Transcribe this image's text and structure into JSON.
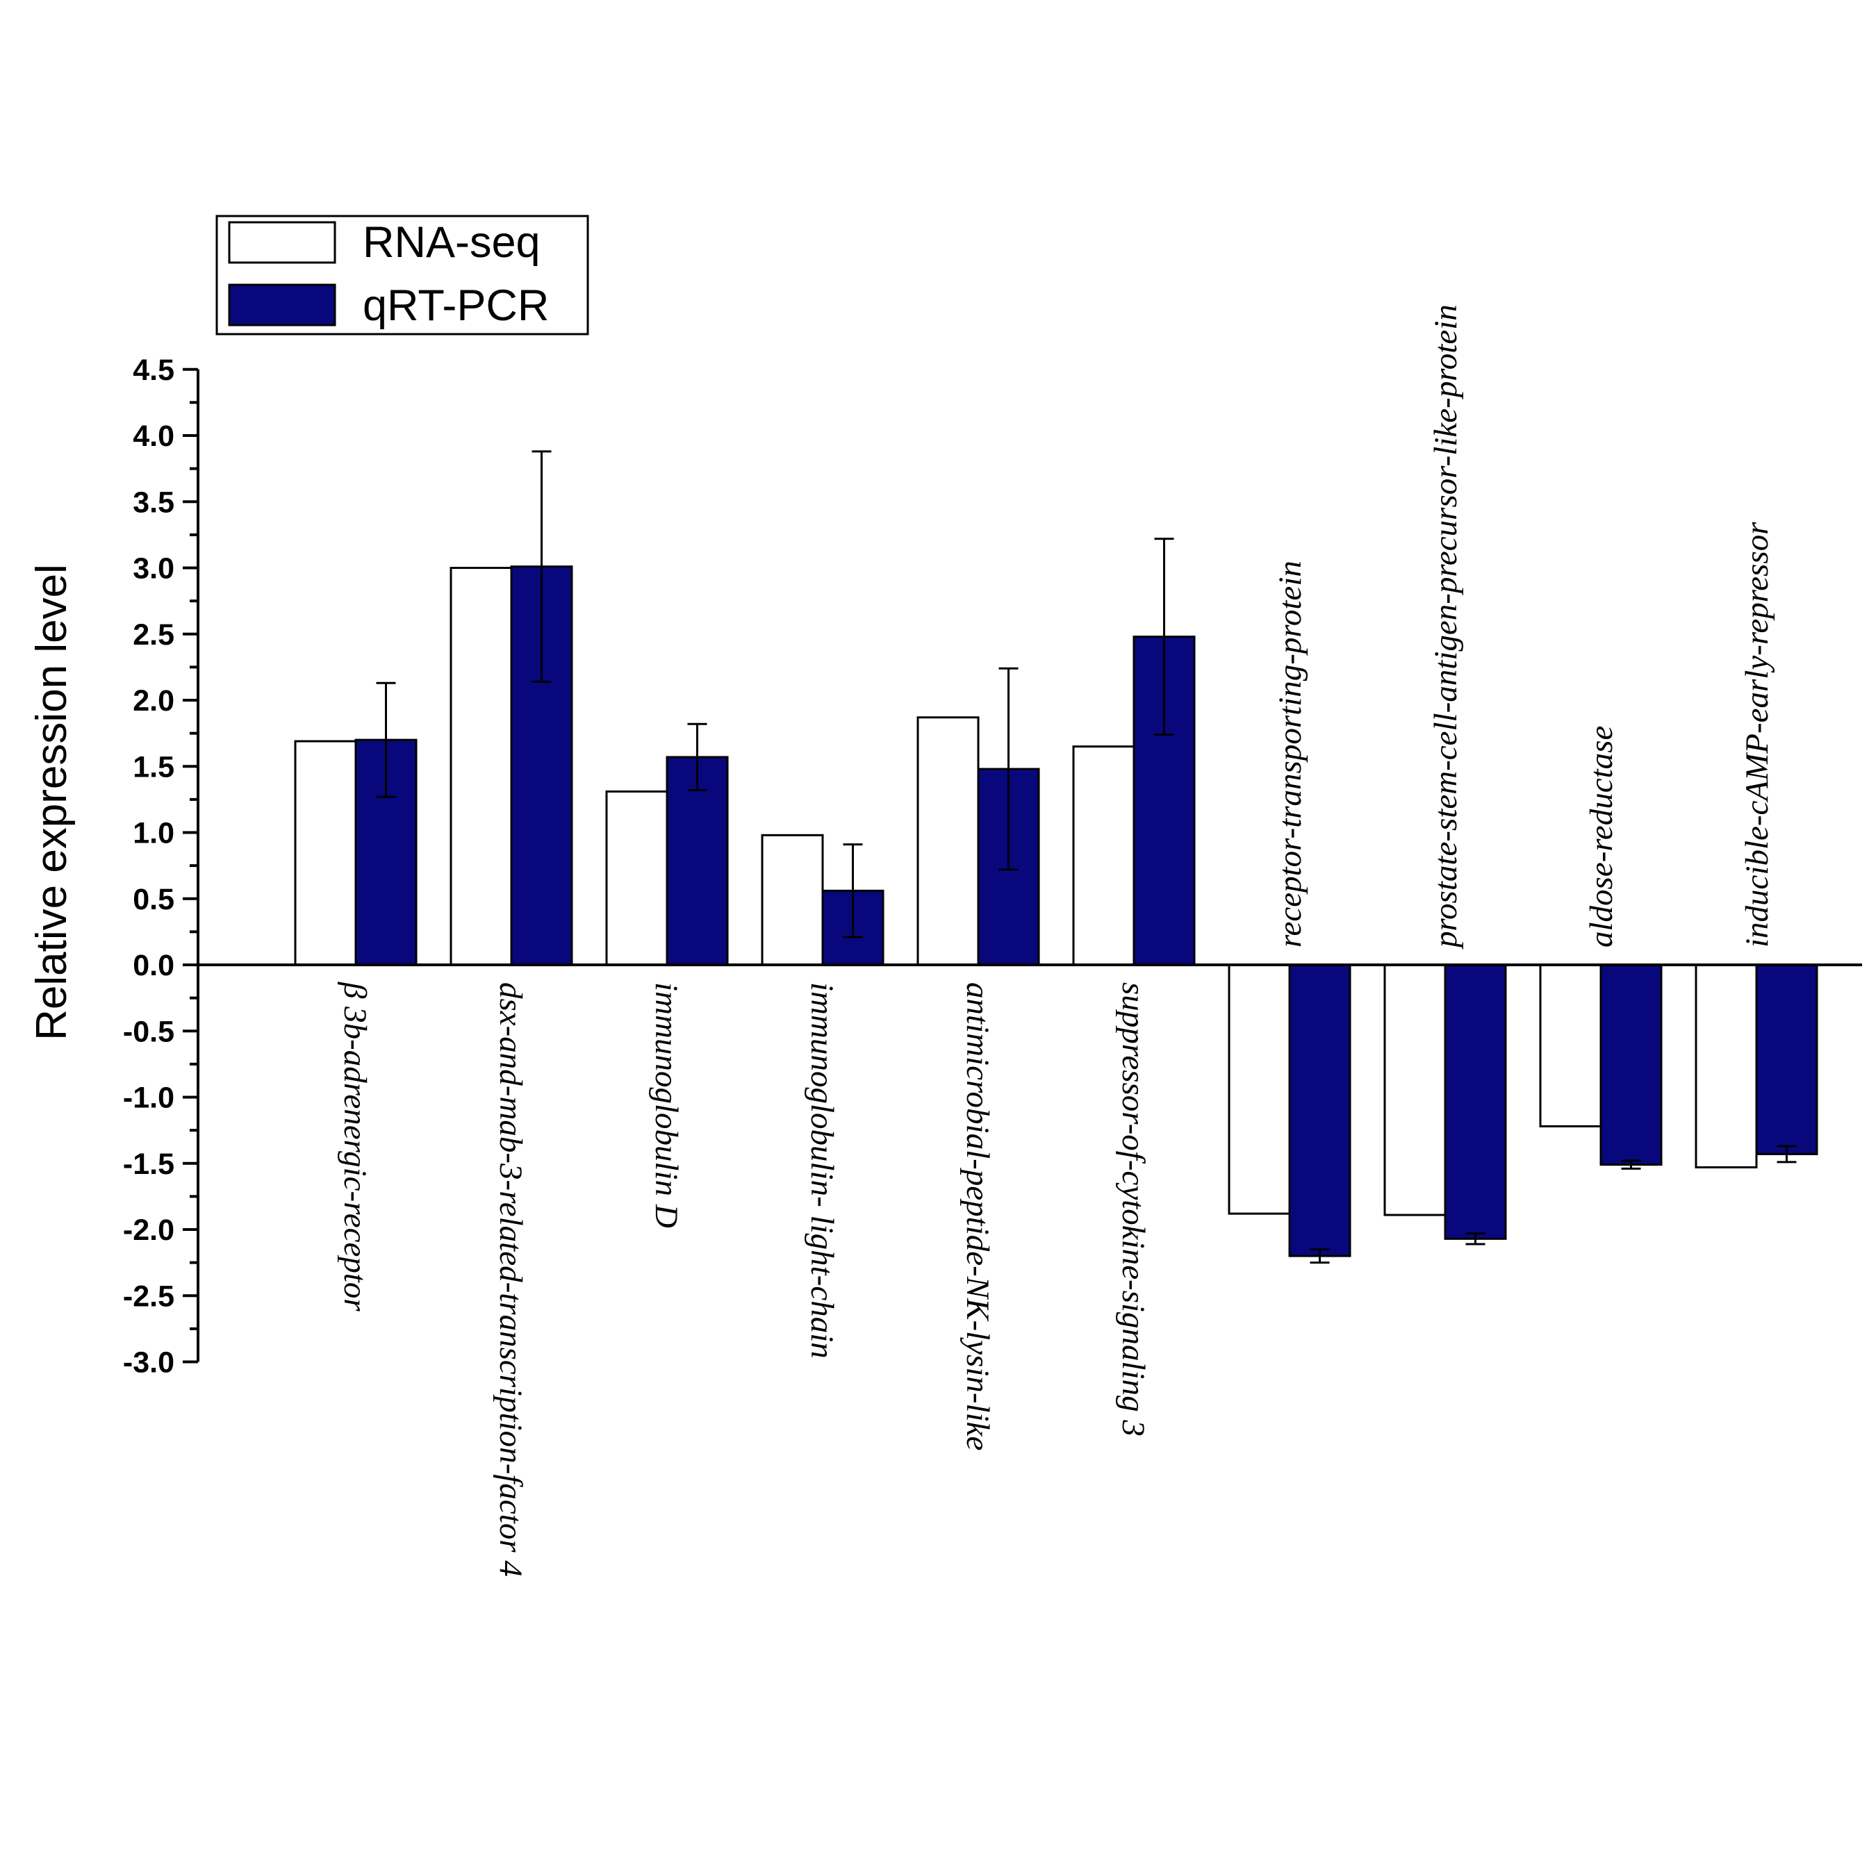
{
  "chart_data": {
    "type": "bar",
    "title": "",
    "xlabel": "",
    "ylabel": "Relative expression level",
    "ylim": [
      -3.0,
      4.5
    ],
    "ytick_step": 0.5,
    "yticks": [
      "4.5",
      "4.0",
      "3.5",
      "3.0",
      "2.5",
      "2.0",
      "1.5",
      "1.0",
      "0.5",
      "0.0",
      "-0.5",
      "-1.0",
      "-1.5",
      "-2.0",
      "-2.5",
      "-3.0"
    ],
    "legend_position": "top-left",
    "categories": [
      "β 3b-adrenergic-receptor",
      "dsx-and-mab-3-related-transcription-factor 4",
      "immunoglobulin D",
      "immunoglobulin- light-chain",
      "antimicrobial-peptide-NK-lysin-like",
      "suppressor-of-cytokine-signaling 3",
      "receptor-transporting-protein",
      "prostate-stem-cell-antigen-precursor-like-protein",
      "aldose-reductase",
      "inducible-cAMP-early-repressor"
    ],
    "series": [
      {
        "name": "RNA-seq",
        "color": "#ffffff",
        "values": [
          1.69,
          3.0,
          1.31,
          0.98,
          1.87,
          1.65,
          -1.88,
          -1.89,
          -1.22,
          -1.53
        ]
      },
      {
        "name": "qRT-PCR",
        "color": "#08087c",
        "values": [
          1.7,
          3.01,
          1.57,
          0.56,
          1.48,
          2.48,
          -2.2,
          -2.07,
          -1.51,
          -1.43
        ],
        "error": [
          0.43,
          0.87,
          0.25,
          0.35,
          0.76,
          0.74,
          0.05,
          0.04,
          0.03,
          0.06
        ]
      }
    ]
  }
}
